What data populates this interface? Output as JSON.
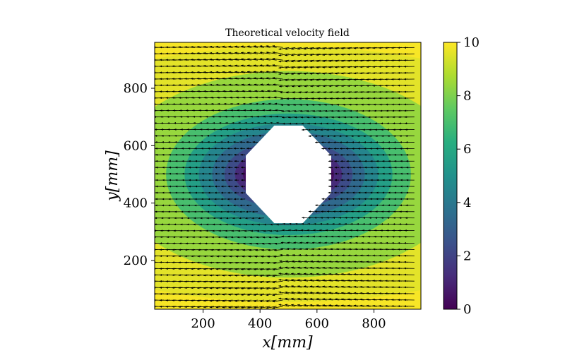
{
  "chart_data": {
    "type": "heatmap",
    "subtype": "contour-with-quiver",
    "title": "Theoretical velocity field",
    "xlabel": "x[mm]",
    "ylabel": "y[mm]",
    "xlim": [
      30,
      965
    ],
    "ylim": [
      30,
      960
    ],
    "x_ticks": [
      200,
      400,
      600,
      800
    ],
    "y_ticks": [
      200,
      400,
      600,
      800
    ],
    "colorbar": {
      "colormap": "viridis",
      "range": [
        0,
        10
      ],
      "ticks": [
        0,
        2,
        4,
        6,
        8,
        10
      ],
      "colors": [
        "#440154",
        "#472d7b",
        "#3b528b",
        "#2c728e",
        "#21918c",
        "#28ae80",
        "#5ec962",
        "#addc30",
        "#fde725"
      ]
    },
    "field": {
      "center": [
        500,
        500
      ],
      "speed_profile": "speed increases with distance from the central obstacle; ~1 near obstacle edge, ~10 near top and bottom edges",
      "flow_direction": "leftward (-x)",
      "grid_step_mm": 22
    },
    "obstacle": {
      "shape": "octagon",
      "vertices": [
        [
          450,
          670
        ],
        [
          550,
          670
        ],
        [
          650,
          565
        ],
        [
          650,
          435
        ],
        [
          550,
          330
        ],
        [
          450,
          330
        ],
        [
          350,
          435
        ],
        [
          350,
          565
        ]
      ]
    }
  }
}
